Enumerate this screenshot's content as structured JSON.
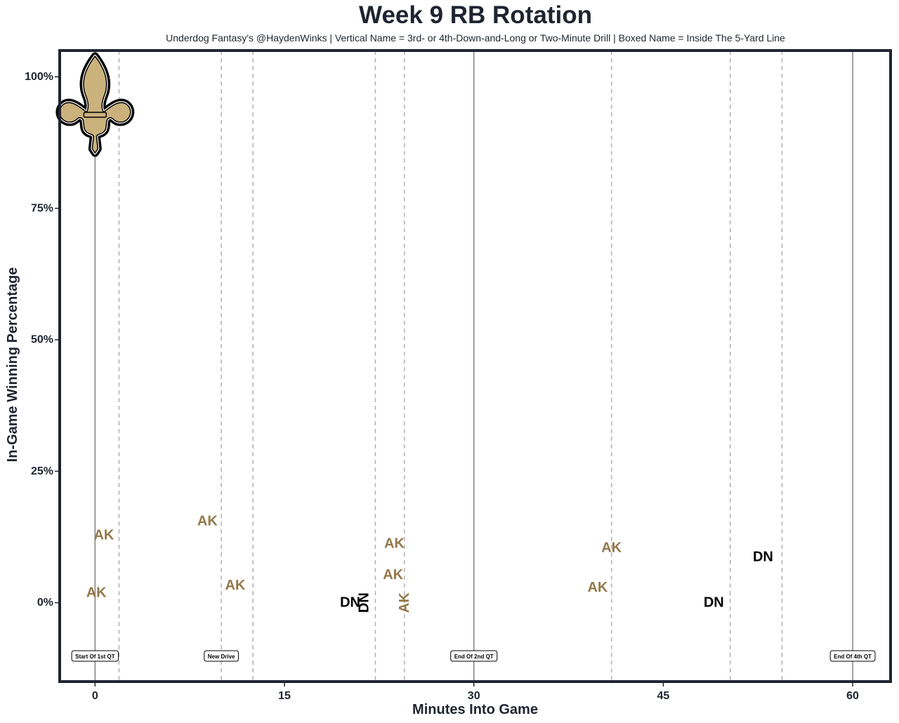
{
  "colors": {
    "frame": "#1f2430",
    "gold": "#94784a",
    "black": "#000000",
    "dashed": "#b0b0b0",
    "solid": "#808080",
    "logo_gold": "#cbb27c"
  },
  "logo": {
    "icon": "fleur-de-lis-icon"
  },
  "chart_data": {
    "type": "scatter",
    "title": "Week 9 RB Rotation",
    "subtitle": "Underdog Fantasy's @HaydenWinks | Vertical Name = 3rd- or 4th-Down-and-Long or Two-Minute Drill | Boxed Name = Inside The 5-Yard Line",
    "xlabel": "Minutes Into Game",
    "ylabel": "In-Game Winning Percentage",
    "xlim": [
      -2.8,
      63
    ],
    "ylim": [
      -15,
      105
    ],
    "x_ticks": [
      0,
      15,
      30,
      45,
      60
    ],
    "x_tick_labels": [
      "0",
      "15",
      "30",
      "45",
      "60"
    ],
    "y_ticks": [
      0,
      25,
      50,
      75,
      100
    ],
    "y_tick_labels": [
      "0%",
      "25%",
      "50%",
      "75%",
      "100%"
    ],
    "grid": false,
    "solid_lines": [
      0,
      30,
      60
    ],
    "dashed_lines": [
      1.9,
      10,
      12.5,
      22.2,
      24.5,
      40.9,
      50.3,
      54.4
    ],
    "annotations": [
      {
        "x": 0,
        "label": "Start Of 1st QT"
      },
      {
        "x": 10,
        "label": "New Drive"
      },
      {
        "x": 30,
        "label": "End Of 2nd QT"
      },
      {
        "x": 60,
        "label": "End Of 4th QT"
      }
    ],
    "points": [
      {
        "x": 0.1,
        "y": 1.9,
        "label": "AK",
        "color": "gold",
        "vertical": false
      },
      {
        "x": 0.7,
        "y": 12.8,
        "label": "AK",
        "color": "gold",
        "vertical": false
      },
      {
        "x": 8.9,
        "y": 15.5,
        "label": "AK",
        "color": "gold",
        "vertical": false
      },
      {
        "x": 11.1,
        "y": 3.3,
        "label": "AK",
        "color": "gold",
        "vertical": false
      },
      {
        "x": 20.2,
        "y": 0.0,
        "label": "DN",
        "color": "black",
        "vertical": false
      },
      {
        "x": 21.3,
        "y": 0.0,
        "label": "DN",
        "color": "black",
        "vertical": true
      },
      {
        "x": 23.6,
        "y": 5.3,
        "label": "AK",
        "color": "gold",
        "vertical": false
      },
      {
        "x": 23.7,
        "y": 11.2,
        "label": "AK",
        "color": "gold",
        "vertical": false
      },
      {
        "x": 24.5,
        "y": 0.0,
        "label": "AK",
        "color": "gold",
        "vertical": true
      },
      {
        "x": 39.8,
        "y": 2.9,
        "label": "AK",
        "color": "gold",
        "vertical": false
      },
      {
        "x": 40.9,
        "y": 10.4,
        "label": "AK",
        "color": "gold",
        "vertical": false
      },
      {
        "x": 49.0,
        "y": 0.0,
        "label": "DN",
        "color": "black",
        "vertical": false
      },
      {
        "x": 52.9,
        "y": 8.7,
        "label": "DN",
        "color": "black",
        "vertical": false
      }
    ]
  }
}
